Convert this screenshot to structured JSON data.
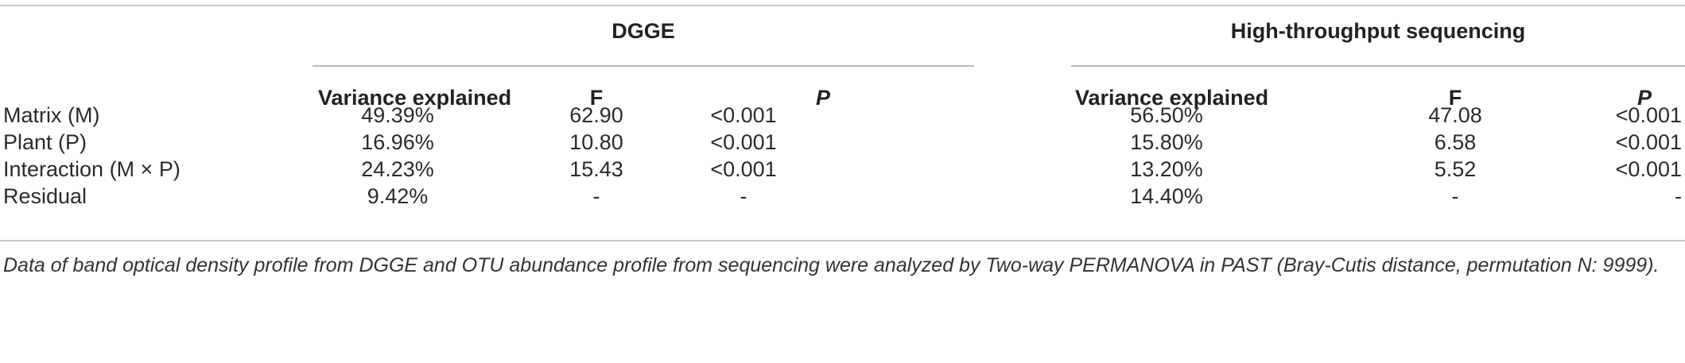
{
  "groups": {
    "dgge": "DGGE",
    "hts": "High-throughput sequencing"
  },
  "columns": {
    "variance": "Variance explained",
    "f": "F",
    "p": "P"
  },
  "rows": [
    {
      "label": "Matrix (M)",
      "dgge_var": "49.39%",
      "dgge_f": "62.90",
      "dgge_p": "<0.001",
      "hts_var": "56.50%",
      "hts_f": "47.08",
      "hts_p": "<0.001"
    },
    {
      "label": "Plant (P)",
      "dgge_var": "16.96%",
      "dgge_f": "10.80",
      "dgge_p": "<0.001",
      "hts_var": "15.80%",
      "hts_f": "6.58",
      "hts_p": "<0.001"
    },
    {
      "label": "Interaction (M × P)",
      "dgge_var": "24.23%",
      "dgge_f": "15.43",
      "dgge_p": "<0.001",
      "hts_var": "13.20%",
      "hts_f": "5.52",
      "hts_p": "<0.001"
    },
    {
      "label": "Residual",
      "dgge_var": "9.42%",
      "dgge_f": "-",
      "dgge_p": "-",
      "hts_var": "14.40%",
      "hts_f": "-",
      "hts_p": "-"
    }
  ],
  "footnote": "Data of band optical density profile from DGGE and OTU abundance profile from sequencing were analyzed by Two-way PERMANOVA in PAST (Bray-Cutis distance, permutation N: 9999)."
}
